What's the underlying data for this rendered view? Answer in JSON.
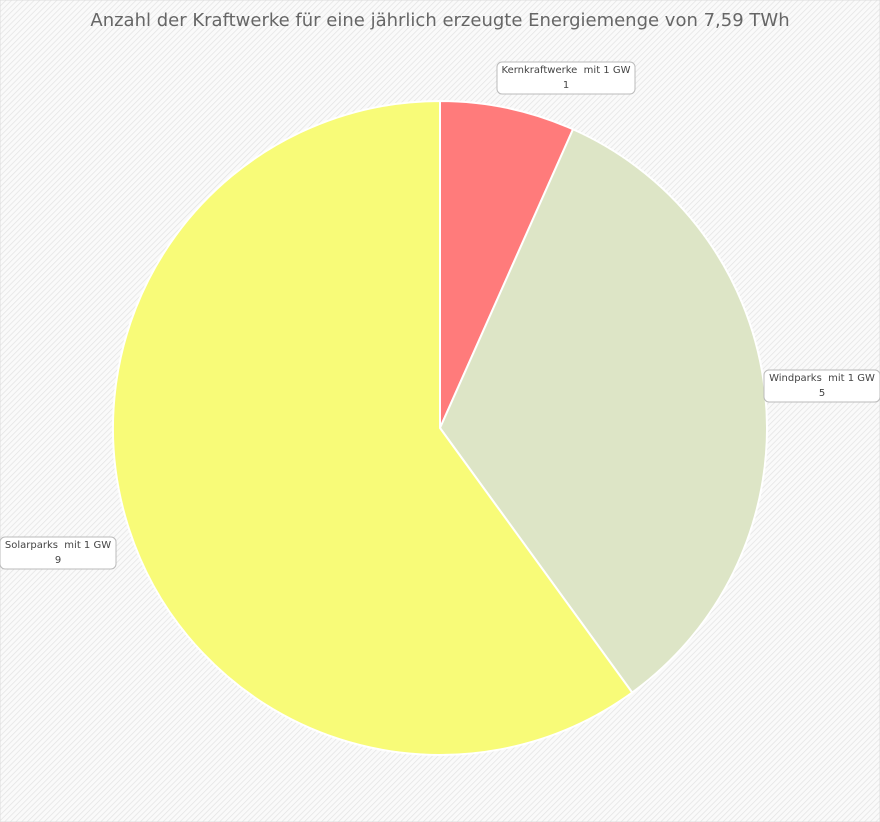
{
  "chart_data": {
    "type": "pie",
    "title": "Anzahl der Kraftwerke für eine jährlich erzeugte Energiemenge von 7,59 TWh",
    "categories": [
      "Kernkraftwerke  mit 1 GW",
      "Windparks  mit 1 GW",
      "Solarparks  mit 1 GW"
    ],
    "values": [
      1,
      5,
      9
    ],
    "colors": [
      "#ff7b7b",
      "#dde5c6",
      "#f8fb78"
    ]
  }
}
